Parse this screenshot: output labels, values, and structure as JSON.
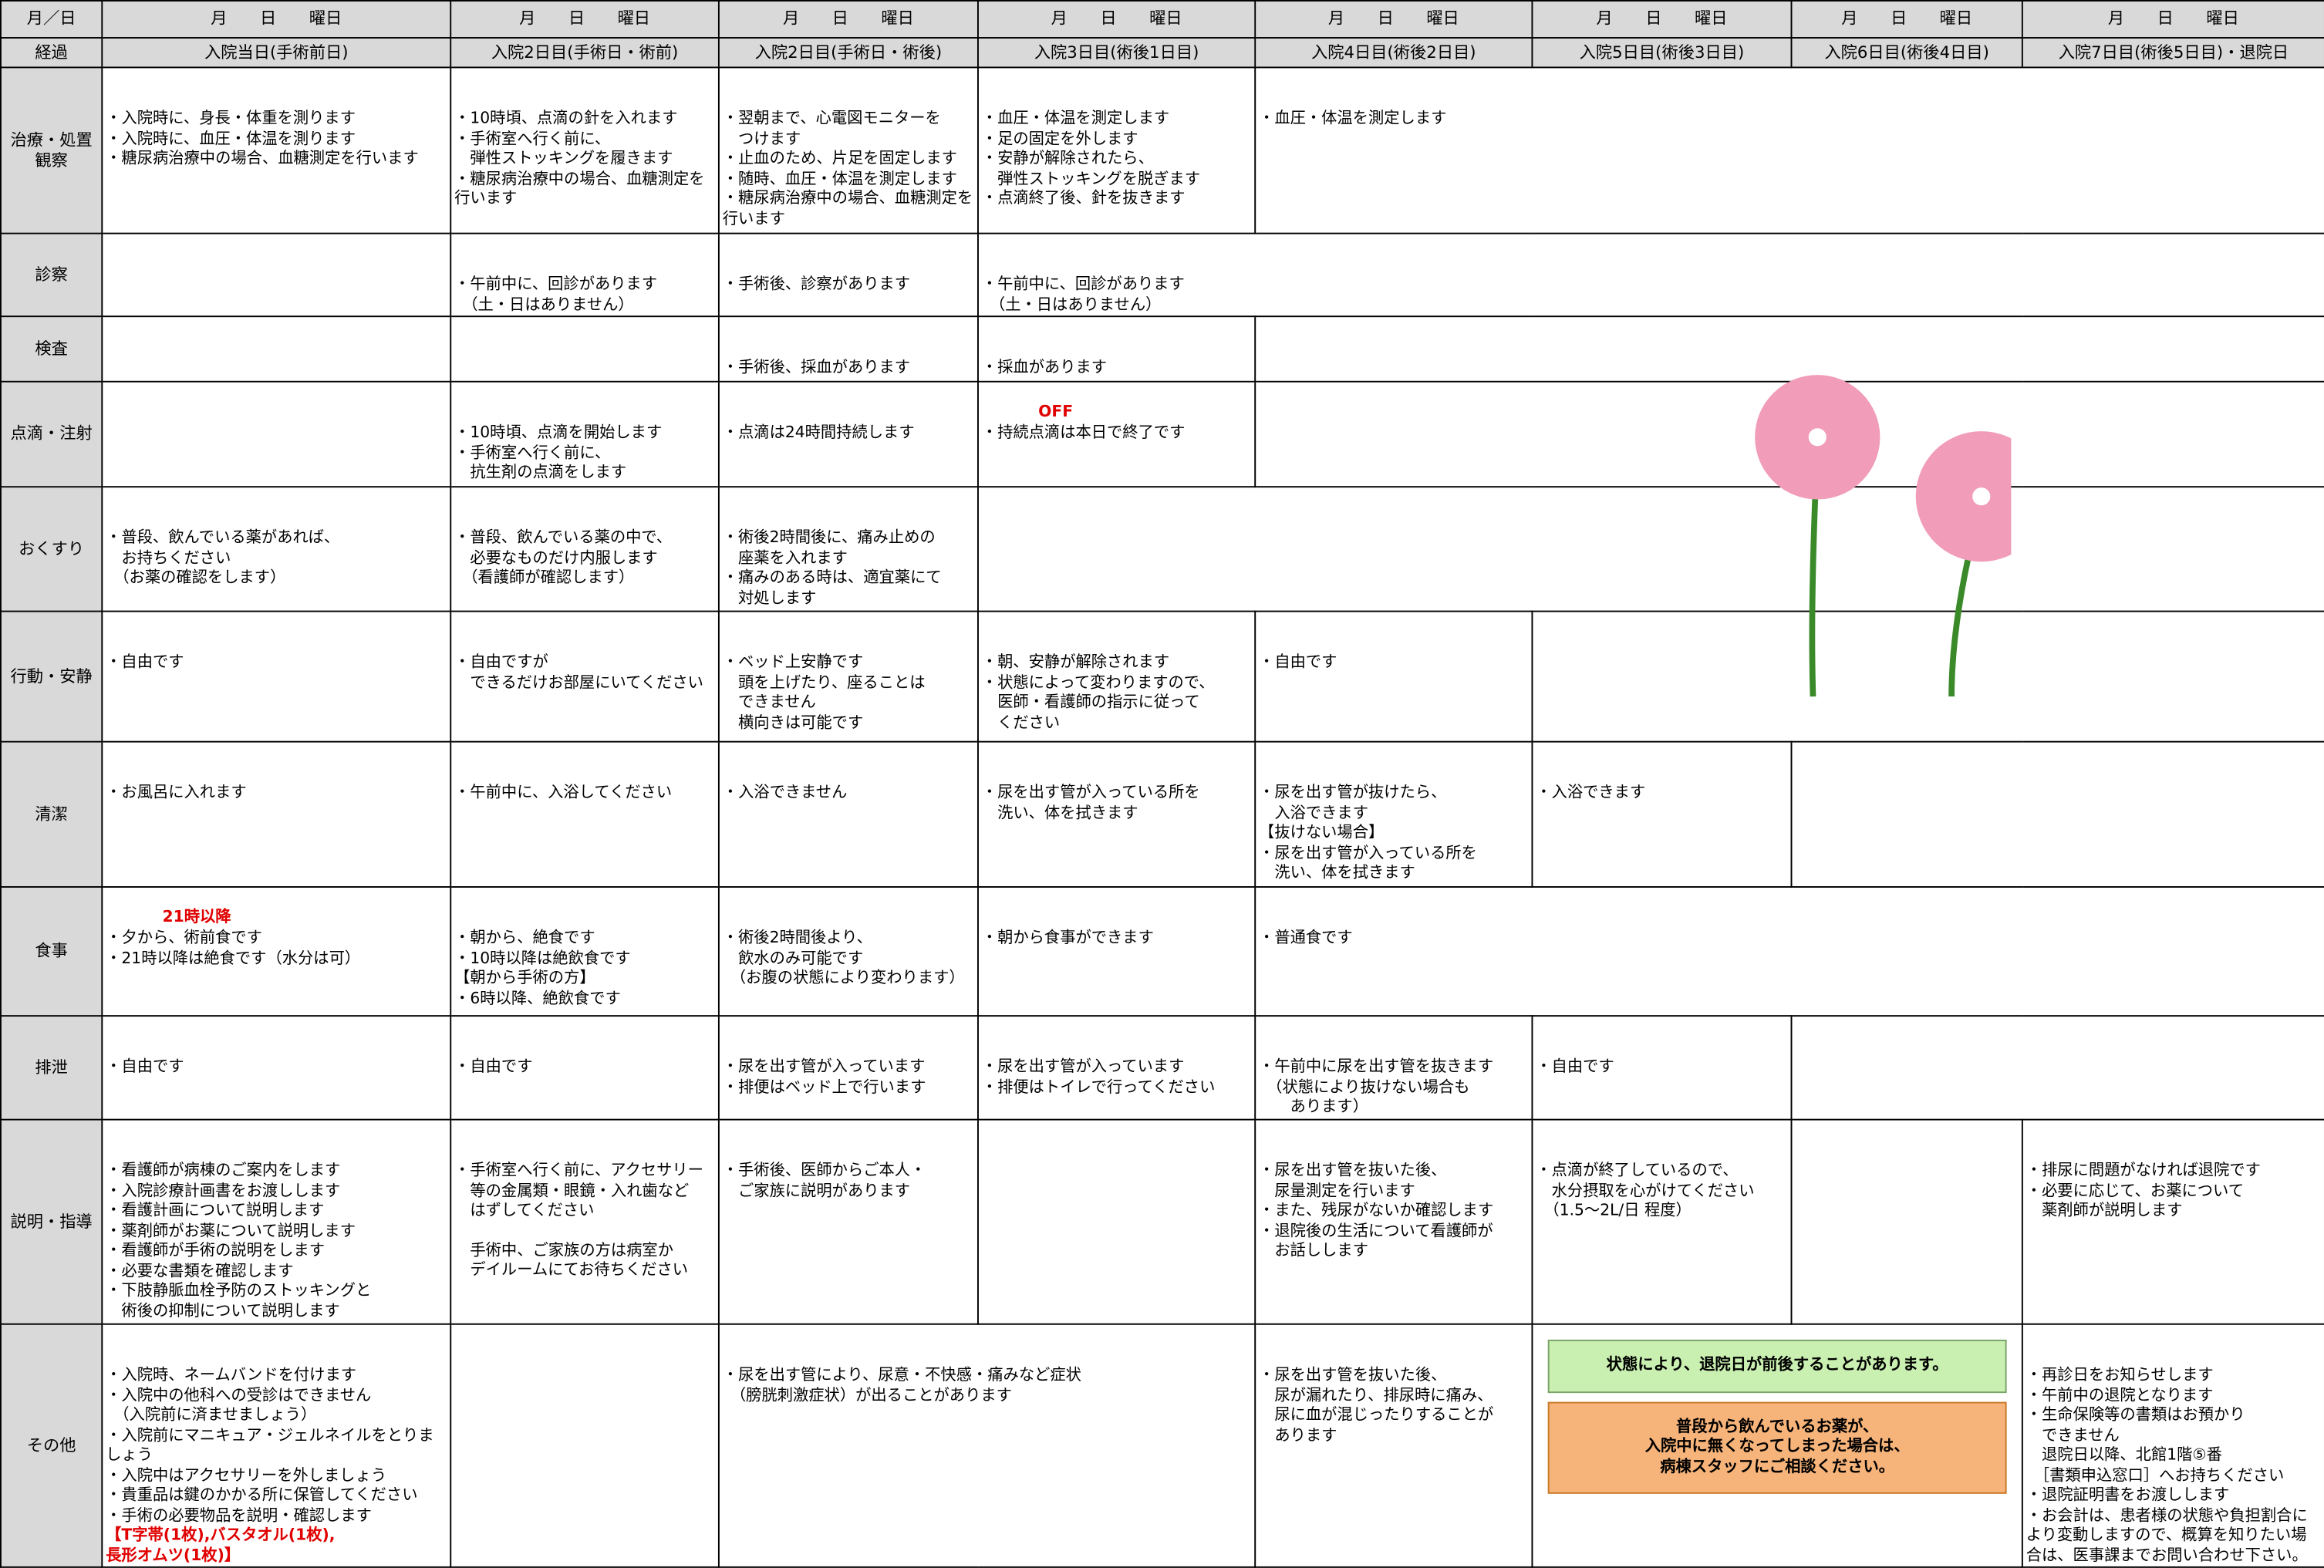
{
  "header": {
    "corner": "月／日",
    "dates": [
      "月　　日　　曜日",
      "月　　日　　曜日",
      "月　　日　　曜日",
      "月　　日　　曜日",
      "月　　日　　曜日",
      "月　　日　　曜日",
      "月　　日　　曜日",
      "月　　日　　曜日"
    ],
    "progress_label": "経過",
    "days": [
      "入院当日(手術前日)",
      "入院2日目(手術日・術前)",
      "入院2日目(手術日・術後)",
      "入院3日目(術後1日目)",
      "入院4日目(術後2日目)",
      "入院5日目(術後3日目)",
      "入院6日目(術後4日目)",
      "入院7日目(術後5日目)・退院日"
    ]
  },
  "rows": [
    {
      "label": "治療・処置観察",
      "cells": [
        {
          "lines": [
            "・入院時に、身長・体重を測ります",
            "・入院時に、血圧・体温を測ります",
            "・糖尿病治療中の場合、血糖測定を行います"
          ]
        },
        {
          "lines": [
            "・10時頃、点滴の針を入れます",
            "・手術室へ行く前に、",
            "　弾性ストッキングを履きます",
            "・糖尿病治療中の場合、血糖測定を行います"
          ]
        },
        {
          "lines": [
            "・翌朝まで、心電図モニターを",
            "　つけます",
            "・止血のため、片足を固定します",
            "・随時、血圧・体温を測定します",
            "・糖尿病治療中の場合、血糖測定を行います"
          ]
        },
        {
          "lines": [
            "・血圧・体温を測定します",
            "・足の固定を外します",
            "・安静が解除されたら、",
            "　弾性ストッキングを脱ぎます",
            "・点滴終了後、針を抜きます"
          ]
        },
        {
          "lines": [
            "・血圧・体温を測定します"
          ]
        }
      ]
    },
    {
      "label": "診察",
      "cells": [
        {
          "lines": []
        },
        {
          "lines": [
            "・午前中に、回診があります",
            "　（土・日はありません）"
          ]
        },
        {
          "lines": [
            "・手術後、診察があります"
          ]
        },
        {
          "lines": [
            "・午前中に、回診があります",
            "　（土・日はありません）"
          ]
        }
      ]
    },
    {
      "label": "検査",
      "cells": [
        {
          "lines": []
        },
        {
          "lines": []
        },
        {
          "lines": [
            "・手術後、採血があります"
          ]
        },
        {
          "lines": [
            "・採血があります"
          ]
        },
        {
          "lines": []
        }
      ]
    },
    {
      "label": "点滴・注射",
      "cells": [
        {
          "lines": []
        },
        {
          "lines": [
            "・10時頃、点滴を開始します",
            "・手術室へ行く前に、",
            "　抗生剤の点滴をします"
          ]
        },
        {
          "lines": [
            "・点滴は24時間持続します"
          ]
        },
        {
          "icon_text": "OFF",
          "lines": [
            "・持続点滴は本日で終了です"
          ]
        },
        {
          "lines": []
        }
      ]
    },
    {
      "label": "おくすり",
      "cells": [
        {
          "lines": [
            "・普段、飲んでいる薬があれば、",
            "　お持ちください",
            "　（お薬の確認をします）"
          ]
        },
        {
          "lines": [
            "・普段、飲んでいる薬の中で、",
            "　必要なものだけ内服します",
            "　（看護師が確認します）"
          ]
        },
        {
          "lines": [
            "・術後2時間後に、痛み止めの",
            "　座薬を入れます",
            "・痛みのある時は、適宜薬にて",
            "　対処します"
          ]
        },
        {
          "lines": []
        }
      ]
    },
    {
      "label": "行動・安静",
      "cells": [
        {
          "lines": [
            "・自由です"
          ]
        },
        {
          "lines": [
            "・自由ですが",
            "　できるだけお部屋にいてください"
          ]
        },
        {
          "lines": [
            "・ベッド上安静です",
            "　頭を上げたり、座ることは",
            "　できません",
            "　横向きは可能です"
          ]
        },
        {
          "lines": [
            "・朝、安静が解除されます",
            "・状態によって変わりますので、",
            "　医師・看護師の指示に従って",
            "　ください"
          ]
        },
        {
          "lines": [
            "・自由です"
          ]
        },
        {
          "lines": []
        }
      ]
    },
    {
      "label": "清潔",
      "cells": [
        {
          "lines": [
            "・お風呂に入れます"
          ]
        },
        {
          "lines": [
            "・午前中に、入浴してください"
          ]
        },
        {
          "lines": [
            "・入浴できません"
          ]
        },
        {
          "lines": [
            "・尿を出す管が入っている所を",
            "　洗い、体を拭きます"
          ]
        },
        {
          "lines": [
            "・尿を出す管が抜けたら、",
            "　入浴できます",
            "【抜けない場合】",
            "・尿を出す管が入っている所を",
            "　洗い、体を拭きます"
          ]
        },
        {
          "lines": [
            "・入浴できます"
          ]
        },
        {
          "lines": []
        }
      ]
    },
    {
      "label": "食事",
      "cells": [
        {
          "icon_text": "21時以降",
          "lines": [
            "・夕から、術前食です",
            "・21時以降は絶食です（水分は可）"
          ]
        },
        {
          "lines": [
            "・朝から、絶食です",
            "・10時以降は絶飲食です",
            "【朝から手術の方】",
            "・6時以降、絶飲食です"
          ]
        },
        {
          "lines": [
            "・術後2時間後より、",
            "　飲水のみ可能です",
            "　（お腹の状態により変わります）"
          ]
        },
        {
          "lines": [
            "・朝から食事ができます"
          ]
        },
        {
          "lines": [
            "・普通食です"
          ]
        }
      ]
    },
    {
      "label": "排泄",
      "cells": [
        {
          "lines": [
            "・自由です"
          ]
        },
        {
          "lines": [
            "・自由です"
          ]
        },
        {
          "lines": [
            "・尿を出す管が入っています",
            "・排便はベッド上で行います"
          ]
        },
        {
          "lines": [
            "・尿を出す管が入っています",
            "・排便はトイレで行ってください"
          ]
        },
        {
          "lines": [
            "・午前中に尿を出す管を抜きます",
            "　（状態により抜けない場合も",
            "　　あります）"
          ]
        },
        {
          "lines": [
            "・自由です"
          ]
        },
        {
          "lines": []
        }
      ]
    },
    {
      "label": "説明・指導",
      "cells": [
        {
          "lines": [
            "・看護師が病棟のご案内をします",
            "・入院診療計画書をお渡しします",
            "・看護計画について説明します",
            "・薬剤師がお薬について説明します",
            "・看護師が手術の説明をします",
            "・必要な書類を確認します",
            "・下肢静脈血栓予防のストッキングと",
            "　術後の抑制について説明します"
          ]
        },
        {
          "lines": [
            "・手術室へ行く前に、アクセサリー",
            "　等の金属類・眼鏡・入れ歯など",
            "　はずしてください"
          ],
          "lines_after": [
            "　手術中、ご家族の方は病室か",
            "　デイルームにてお待ちください"
          ]
        },
        {
          "lines": [
            "・手術後、医師からご本人・",
            "　ご家族に説明があります"
          ]
        },
        {
          "lines": []
        },
        {
          "lines": [
            "・尿を出す管を抜いた後、",
            "　尿量測定を行います",
            "・また、残尿がないか確認します",
            "・退院後の生活について看護師が",
            "　お話しします"
          ]
        },
        {
          "lines": [
            "・点滴が終了しているので、",
            "　水分摂取を心がけてください",
            "　（1.5～2L/日 程度）"
          ]
        },
        {
          "lines": []
        },
        {
          "lines": [
            "・排尿に問題がなければ退院です",
            "・必要に応じて、お薬について",
            "　薬剤師が説明します"
          ]
        }
      ]
    },
    {
      "label": "その他",
      "cells": [
        {
          "lines": [
            "・入院時、ネームバンドを付けます",
            "・入院中の他科への受診はできません",
            "　（入院前に済ませましょう）",
            "・入院前にマニキュア・ジェルネイルをとりましょう",
            "・入院中はアクセサリーを外しましょう",
            "・貴重品は鍵のかかる所に保管してください",
            "・手術の必要物品を説明・確認します"
          ],
          "red_lines": [
            "【T字帯(1枚),バスタオル(1枚),",
            "長形オムツ(1枚)】"
          ]
        },
        {
          "lines": []
        },
        {
          "lines": [
            "・尿を出す管により、尿意・不快感・痛みなど症状",
            "　（膀胱刺激症状）が出ることがあります"
          ]
        },
        {
          "lines": [
            "・尿を出す管を抜いた後、",
            "　尿が漏れたり、排尿時に痛み、",
            "　尿に血が混じったりすることが",
            "　あります"
          ]
        },
        {
          "banner_green": [
            "状態により、退院日が前後することがあります。"
          ],
          "banner_orange": [
            "普段から飲んでいるお薬が、",
            "入院中に無くなってしまった場合は、",
            "病棟スタッフにご相談ください。"
          ]
        },
        {
          "lines": [
            "・再診日をお知らせします",
            "・午前中の退院となります",
            "・生命保険等の書類はお預かり",
            "　できません",
            "　退院日以降、北館1階⑤番",
            "　［書類申込窓口］へお持ちください",
            "・退院証明書をお渡しします",
            "・お会計は、患者様の状態や負担割合により変動しますので、概算を知りたい場合は、医事課までお問い合わせ下さい。"
          ]
        }
      ]
    }
  ]
}
